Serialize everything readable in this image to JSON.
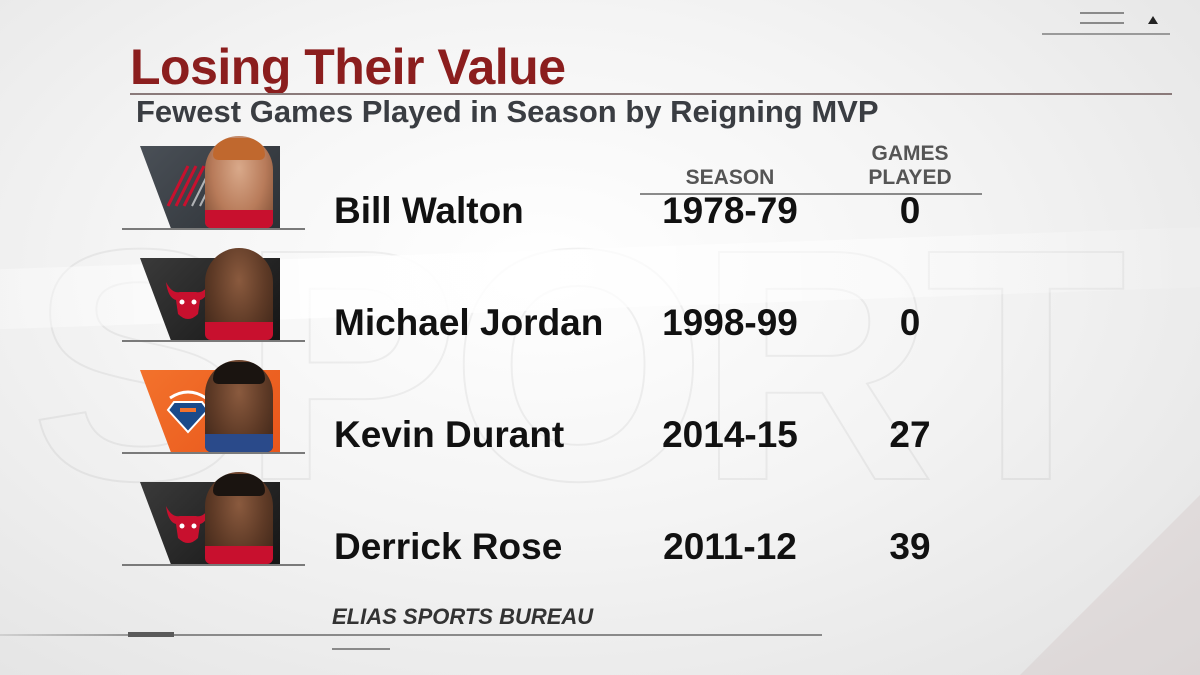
{
  "title": "Losing Their Value",
  "subtitle": "Fewest Games Played in Season by Reigning MVP",
  "columns": {
    "season": "SEASON",
    "games": "GAMES\nPLAYED"
  },
  "rows": [
    {
      "player": "Bill Walton",
      "season": "1978-79",
      "games": "0",
      "team_logo": "blazers-logo",
      "team_color": "#3a3f45"
    },
    {
      "player": "Michael Jordan",
      "season": "1998-99",
      "games": "0",
      "team_logo": "bulls-logo",
      "team_color": "#1c1c1c"
    },
    {
      "player": "Kevin Durant",
      "season": "2014-15",
      "games": "27",
      "team_logo": "thunder-logo",
      "team_color": "#ef6a25"
    },
    {
      "player": "Derrick Rose",
      "season": "2011-12",
      "games": "39",
      "team_logo": "bulls-logo",
      "team_color": "#1c1c1c"
    }
  ],
  "source": "ELIAS SPORTS BUREAU",
  "colors": {
    "title": "#8b1e1e",
    "subtitle": "#3a3d42",
    "text": "#111111"
  }
}
